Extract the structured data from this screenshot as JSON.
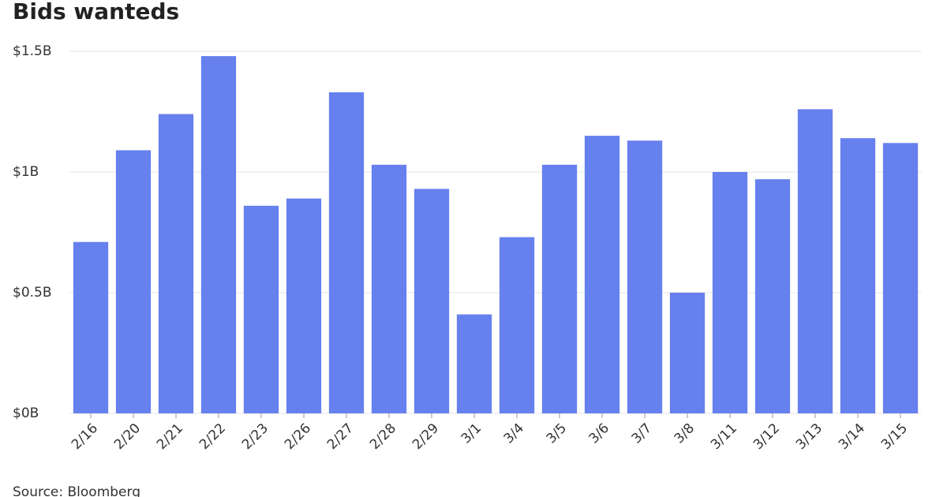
{
  "chart_data": {
    "type": "bar",
    "title": "Bids wanteds",
    "source": "Source: Bloomberg",
    "categories": [
      "2/16",
      "2/20",
      "2/21",
      "2/22",
      "2/23",
      "2/26",
      "2/27",
      "2/28",
      "2/29",
      "3/1",
      "3/4",
      "3/5",
      "3/6",
      "3/7",
      "3/8",
      "3/11",
      "3/12",
      "3/13",
      "3/14",
      "3/15"
    ],
    "values": [
      0.71,
      1.09,
      1.24,
      1.48,
      0.86,
      0.89,
      1.33,
      1.03,
      0.93,
      0.41,
      0.73,
      1.03,
      1.15,
      1.13,
      0.5,
      1.0,
      0.97,
      1.26,
      1.14,
      1.12
    ],
    "color": "#6680ee",
    "ylim": [
      0,
      1.5
    ],
    "yticks": [
      {
        "value": 0,
        "label": "$0B"
      },
      {
        "value": 0.5,
        "label": "$0.5B"
      },
      {
        "value": 1,
        "label": "$1B"
      },
      {
        "value": 1.5,
        "label": "$1.5B"
      }
    ],
    "grid": true
  }
}
